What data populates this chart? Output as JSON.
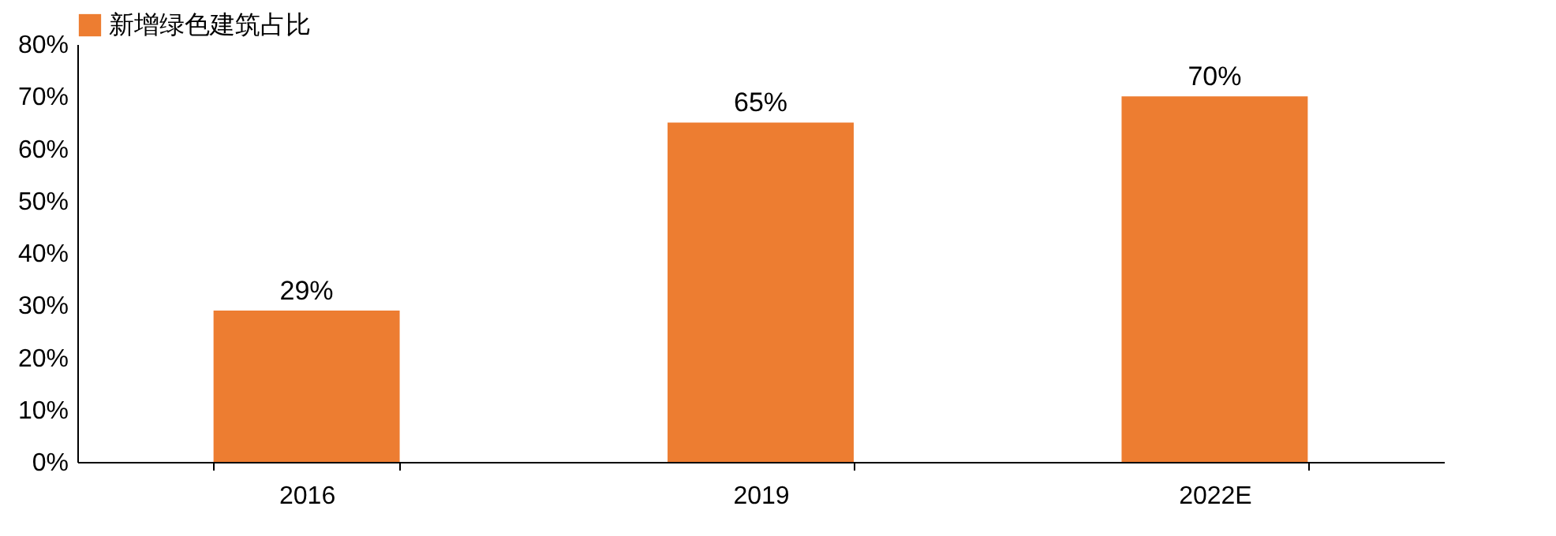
{
  "chart_data": {
    "type": "bar",
    "categories": [
      "2016",
      "2019",
      "2022E"
    ],
    "series": [
      {
        "name": "新增绿色建筑占比",
        "color": "#ed7d31",
        "values": [
          29,
          65,
          70
        ],
        "value_labels": [
          "29%",
          "65%",
          "70%"
        ]
      }
    ],
    "ylim": [
      0,
      80
    ],
    "yticks": [
      {
        "value": 0,
        "label": "0%"
      },
      {
        "value": 10,
        "label": "10%"
      },
      {
        "value": 20,
        "label": "20%"
      },
      {
        "value": 30,
        "label": "30%"
      },
      {
        "value": 40,
        "label": "40%"
      },
      {
        "value": 50,
        "label": "50%"
      },
      {
        "value": 60,
        "label": "60%"
      },
      {
        "value": 70,
        "label": "70%"
      },
      {
        "value": 80,
        "label": "80%"
      }
    ],
    "grid": false,
    "legend": "top"
  }
}
